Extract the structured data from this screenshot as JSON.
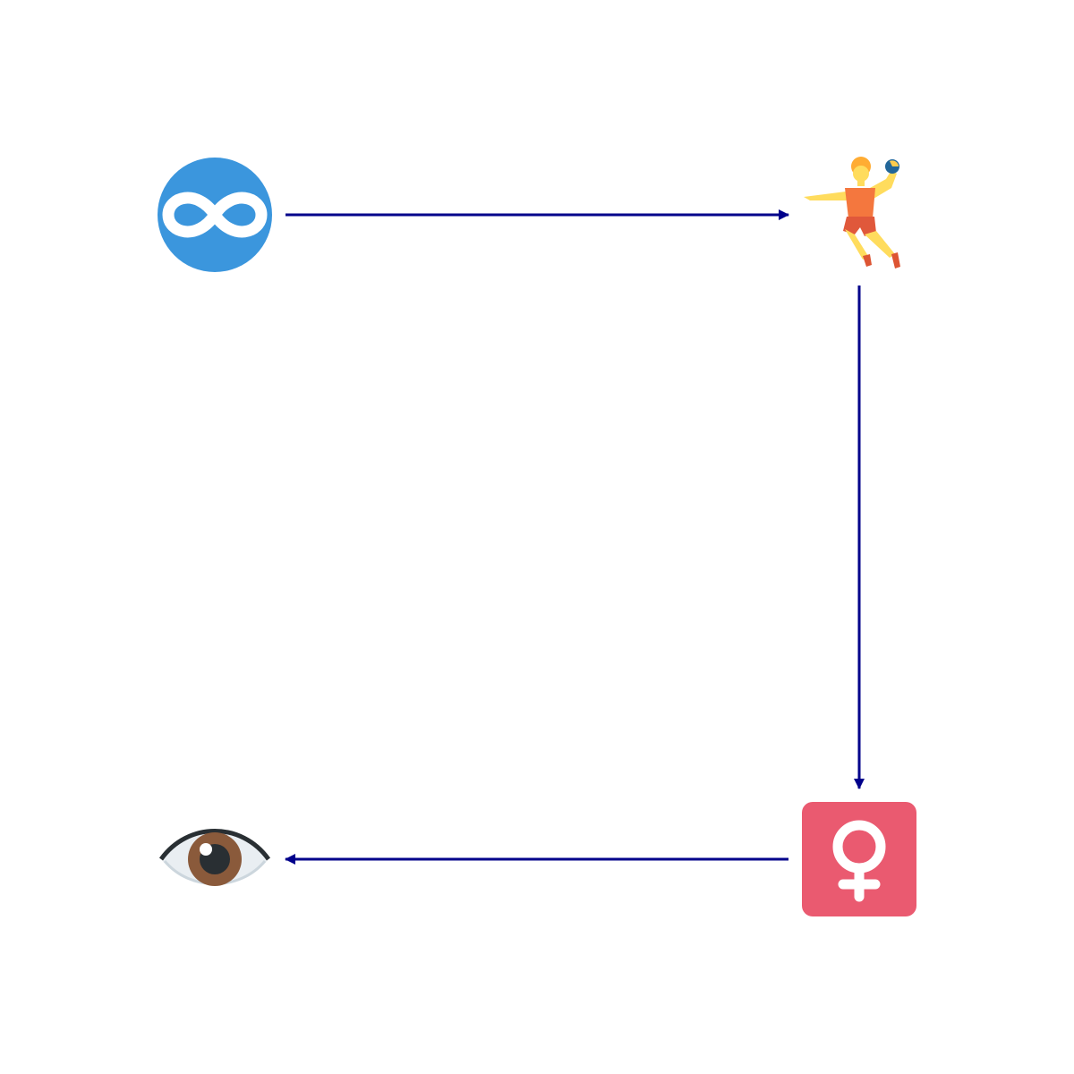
{
  "diagram": {
    "nodes": [
      {
        "id": "infinity",
        "icon": "infinity-icon",
        "color": "#3B96DD"
      },
      {
        "id": "handball",
        "icon": "person-playing-handball-icon",
        "color": "#F4773E"
      },
      {
        "id": "female",
        "icon": "female-sign-icon",
        "color": "#EA5A70"
      },
      {
        "id": "eye",
        "icon": "eye-icon",
        "color": "#8A5A3B"
      }
    ],
    "edges": [
      {
        "from": "infinity",
        "to": "handball"
      },
      {
        "from": "handball",
        "to": "female"
      },
      {
        "from": "female",
        "to": "eye"
      }
    ],
    "edge_color": "#00008B"
  }
}
